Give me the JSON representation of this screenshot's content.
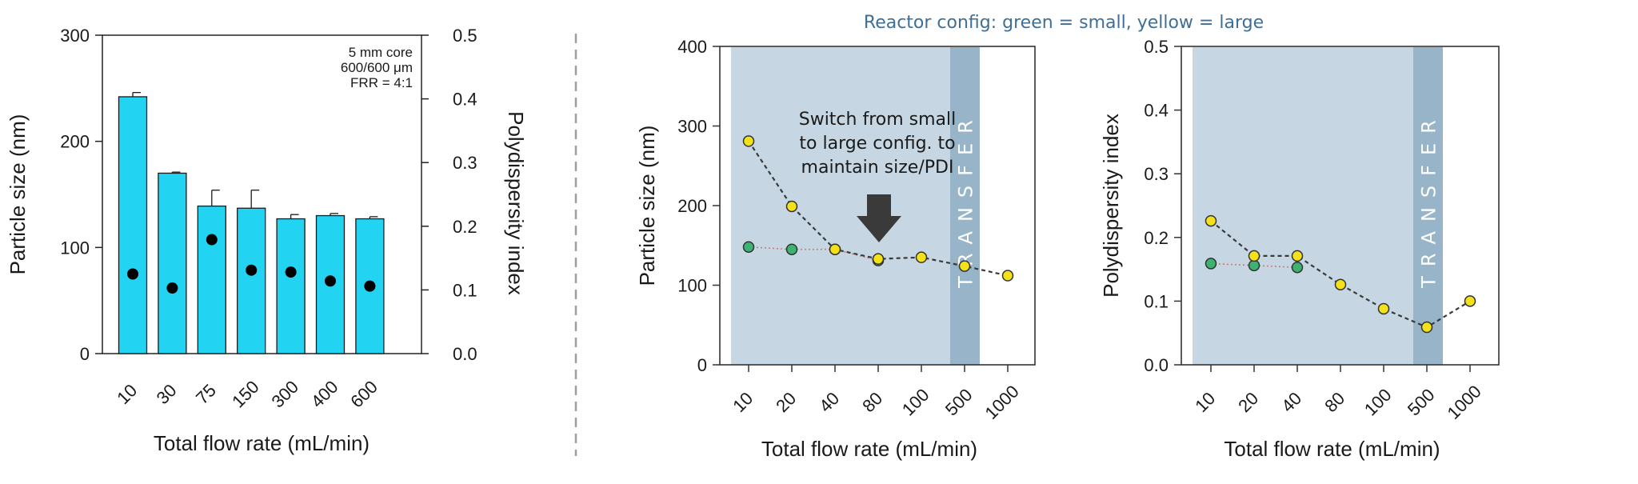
{
  "divider_color": "#9e9e9e",
  "chart_data": [
    {
      "type": "bar",
      "categories": [
        "10",
        "30",
        "75",
        "150",
        "300",
        "400",
        "600"
      ],
      "series": [
        {
          "values": [
            242,
            170,
            139,
            137,
            127,
            130,
            127
          ],
          "errors": [
            4,
            1,
            15,
            17,
            4,
            2,
            2
          ],
          "color": "#22d3f2"
        },
        {
          "values": [
            0.125,
            0.103,
            0.179,
            0.131,
            0.128,
            0.114,
            0.106
          ],
          "axis": "right",
          "color": "#000000"
        }
      ],
      "annotation": [
        "5 mm core",
        "600/600 μm",
        "FRR = 4:1"
      ],
      "xlabel": "Total flow rate (mL/min)",
      "ylabel": "Particle size (nm)",
      "y2label": "Polydispersity index",
      "ylim": [
        0,
        300
      ],
      "y2lim": [
        0,
        0.5
      ],
      "yticks": [
        "0",
        "100",
        "200",
        "300"
      ],
      "y2ticks": [
        "0.0",
        "0.1",
        "0.2",
        "0.3",
        "0.4",
        "0.5"
      ],
      "grid": false
    },
    {
      "type": "scatter",
      "title": "Reactor config: green = small, yellow = large",
      "categories": [
        "10",
        "20",
        "40",
        "80",
        "100",
        "500",
        "1000"
      ],
      "series": [
        {
          "color": "#3cb371",
          "values": [
            148,
            145,
            145,
            131,
            null,
            null,
            null
          ]
        },
        {
          "color": "#f5e11a",
          "values": [
            281,
            199,
            145,
            133,
            135,
            124,
            112
          ]
        }
      ],
      "band_label": "TRANSFER",
      "annotation": [
        "Switch from small",
        "to large config. to",
        "maintain size/PDI"
      ],
      "xlabel": "Total flow rate (mL/min)",
      "ylabel": "Particle size (nm)",
      "ylim": [
        0,
        400
      ],
      "yticks": [
        "0",
        "100",
        "200",
        "300",
        "400"
      ],
      "band_color": "#c6d7e3",
      "transfer_color": "#97b4c8",
      "grid": false
    },
    {
      "type": "scatter",
      "categories": [
        "10",
        "20",
        "40",
        "80",
        "100",
        "500",
        "1000"
      ],
      "series": [
        {
          "color": "#3cb371",
          "values": [
            0.159,
            0.156,
            0.153,
            null,
            null,
            null,
            null
          ]
        },
        {
          "color": "#f5e11a",
          "values": [
            0.226,
            0.171,
            0.171,
            0.126,
            0.088,
            0.059,
            0.1
          ]
        }
      ],
      "band_label": "TRANSFER",
      "xlabel": "Total flow rate (mL/min)",
      "ylabel": "Polydispersity index",
      "ylim": [
        0,
        0.5
      ],
      "yticks": [
        "0.0",
        "0.1",
        "0.2",
        "0.3",
        "0.4",
        "0.5"
      ],
      "band_color": "#c6d7e3",
      "transfer_color": "#97b4c8",
      "grid": false
    }
  ]
}
